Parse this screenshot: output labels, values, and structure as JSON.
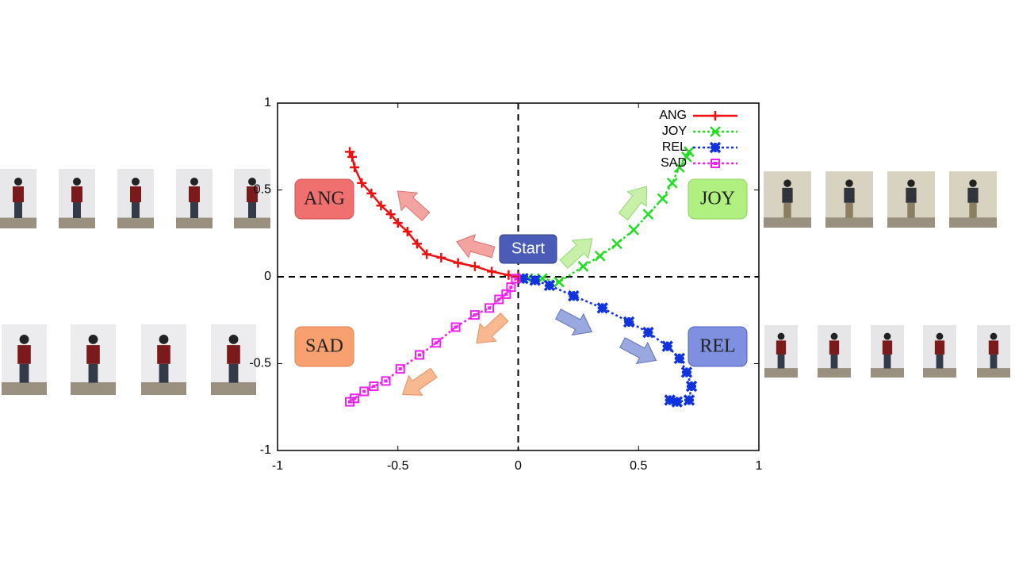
{
  "chart_data": {
    "type": "line",
    "xlim": [
      -1,
      1
    ],
    "ylim": [
      -1,
      1
    ],
    "xticks": [
      -1,
      -0.5,
      0,
      0.5,
      1
    ],
    "yticks": [
      -1,
      -0.5,
      0,
      0.5,
      1
    ],
    "zero_lines": true,
    "legend": "upper right",
    "series": [
      {
        "name": "ANG",
        "color": "#ee1111",
        "marker": "plus",
        "dash": "solid",
        "x": [
          0,
          -0.04,
          -0.11,
          -0.18,
          -0.25,
          -0.32,
          -0.38,
          -0.42,
          -0.46,
          -0.5,
          -0.53,
          -0.57,
          -0.61,
          -0.65,
          -0.68,
          -0.69,
          -0.7
        ],
        "values": [
          0,
          0.01,
          0.03,
          0.06,
          0.08,
          0.11,
          0.13,
          0.19,
          0.26,
          0.31,
          0.36,
          0.41,
          0.48,
          0.54,
          0.63,
          0.69,
          0.72
        ]
      },
      {
        "name": "JOY",
        "color": "#22dd22",
        "marker": "cross",
        "dash": "dotted",
        "x": [
          0.04,
          0.1,
          0.17,
          0.27,
          0.34,
          0.41,
          0.48,
          0.54,
          0.6,
          0.64,
          0.67,
          0.7,
          0.71
        ],
        "values": [
          -0.01,
          -0.01,
          -0.03,
          0.06,
          0.12,
          0.19,
          0.27,
          0.36,
          0.45,
          0.54,
          0.63,
          0.69,
          0.72
        ]
      },
      {
        "name": "REL",
        "color": "#1133dd",
        "marker": "star",
        "dash": "dotted",
        "x": [
          0.02,
          0.07,
          0.13,
          0.23,
          0.35,
          0.46,
          0.54,
          0.62,
          0.67,
          0.7,
          0.72,
          0.71,
          0.66,
          0.63
        ],
        "values": [
          -0.01,
          -0.02,
          -0.05,
          -0.11,
          -0.18,
          -0.26,
          -0.32,
          -0.4,
          -0.47,
          -0.55,
          -0.63,
          -0.71,
          -0.72,
          -0.71
        ]
      },
      {
        "name": "SAD",
        "color": "#ee22ee",
        "marker": "square",
        "dash": "dotted",
        "x": [
          -0.01,
          -0.03,
          -0.05,
          -0.08,
          -0.12,
          -0.18,
          -0.26,
          -0.34,
          -0.41,
          -0.49,
          -0.55,
          -0.6,
          -0.64,
          -0.68,
          -0.7
        ],
        "values": [
          -0.01,
          -0.06,
          -0.1,
          -0.13,
          -0.18,
          -0.22,
          -0.29,
          -0.38,
          -0.45,
          -0.53,
          -0.6,
          -0.63,
          -0.66,
          -0.7,
          -0.72
        ]
      }
    ],
    "annotations": [
      "ANG",
      "JOY",
      "SAD",
      "REL",
      "Start"
    ]
  }
}
